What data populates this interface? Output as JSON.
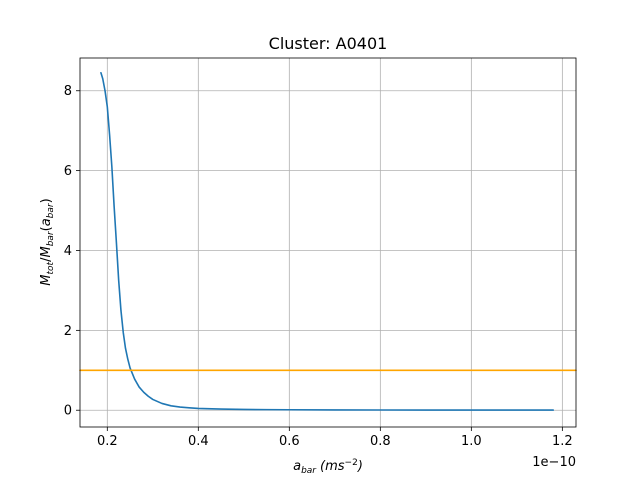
{
  "chart_data": {
    "type": "line",
    "title": "Cluster: A0401",
    "xlabel_main": "a",
    "xlabel_sub": "bar",
    "xlabel_unit": "(ms",
    "xlabel_unit_exp": "−2",
    "xlabel_unit_close": ")",
    "ylabel": "M_tot/M_bar(a_bar)",
    "x_offset_label": "1e−10",
    "x_scale": 1e-10,
    "xlim": [
      0.14,
      1.23
    ],
    "ylim": [
      -0.42,
      8.82
    ],
    "grid": true,
    "x_ticks": [
      {
        "value": 0.2,
        "label": "0.2"
      },
      {
        "value": 0.4,
        "label": "0.4"
      },
      {
        "value": 0.6,
        "label": "0.6"
      },
      {
        "value": 0.8,
        "label": "0.8"
      },
      {
        "value": 1.0,
        "label": "1.0"
      },
      {
        "value": 1.2,
        "label": "1.2"
      }
    ],
    "y_ticks": [
      {
        "value": 0,
        "label": "0"
      },
      {
        "value": 2,
        "label": "2"
      },
      {
        "value": 4,
        "label": "4"
      },
      {
        "value": 6,
        "label": "6"
      },
      {
        "value": 8,
        "label": "8"
      }
    ],
    "series": [
      {
        "color": "#1f77b4",
        "x": [
          0.186,
          0.19,
          0.195,
          0.2,
          0.205,
          0.21,
          0.215,
          0.22,
          0.225,
          0.23,
          0.235,
          0.24,
          0.245,
          0.25,
          0.26,
          0.27,
          0.28,
          0.29,
          0.3,
          0.32,
          0.34,
          0.36,
          0.38,
          0.4,
          0.45,
          0.5,
          0.55,
          0.6,
          0.7,
          0.8,
          0.9,
          1.0,
          1.1,
          1.18
        ],
        "y": [
          8.45,
          8.3,
          8.0,
          7.6,
          6.9,
          6.1,
          5.1,
          4.2,
          3.25,
          2.5,
          1.95,
          1.55,
          1.28,
          1.06,
          0.78,
          0.58,
          0.45,
          0.35,
          0.27,
          0.17,
          0.11,
          0.08,
          0.06,
          0.045,
          0.03,
          0.02,
          0.015,
          0.012,
          0.008,
          0.006,
          0.005,
          0.004,
          0.003,
          0.003
        ]
      },
      {
        "color": "#ffa500",
        "x": [
          0.14,
          1.23
        ],
        "y": [
          1.0,
          1.0
        ]
      }
    ]
  }
}
